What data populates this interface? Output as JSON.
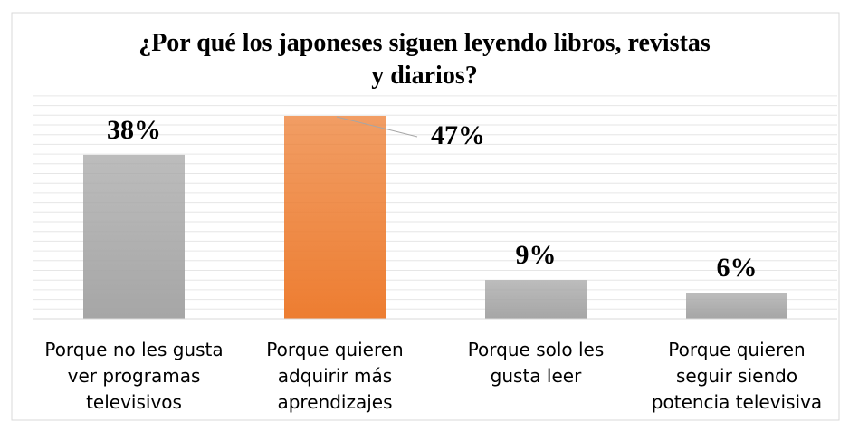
{
  "chart_data": {
    "type": "bar",
    "title": "¿Por qué los japoneses siguen leyendo libros, revistas\ny diarios?",
    "categories": [
      "Porque no les gusta\nver programas\ntelevisivos",
      "Porque quieren\nadquirir más\naprendizajes",
      "Porque solo les\ngusta leer",
      "Porque quieren\nseguir siendo\npotencia televisiva"
    ],
    "values": [
      38,
      47,
      9,
      6
    ],
    "value_labels": [
      "38%",
      "47%",
      "9%",
      "6%"
    ],
    "colors": [
      "#a6a6a6",
      "#ed7d31",
      "#a6a6a6",
      "#a6a6a6"
    ],
    "ylim": [
      0,
      47
    ],
    "grid": true
  }
}
